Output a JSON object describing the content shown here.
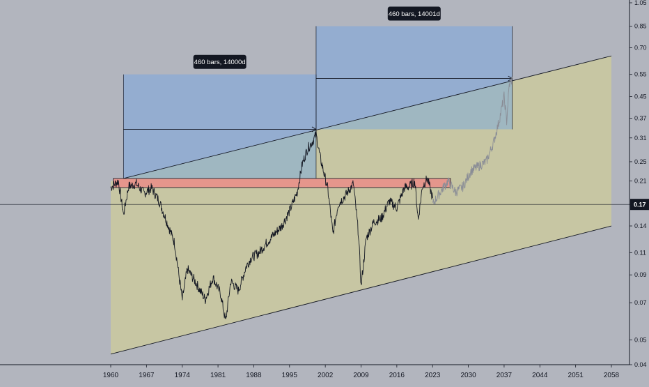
{
  "chart_data": {
    "type": "line",
    "title": "",
    "xlabel": "",
    "ylabel": "",
    "x_ticks": [
      "1960",
      "1967",
      "1974",
      "1981",
      "1988",
      "1995",
      "2002",
      "2009",
      "2016",
      "2023",
      "2030",
      "2037",
      "2044",
      "2051",
      "2058"
    ],
    "y_ticks": [
      "1.05",
      "0.85",
      "0.70",
      "0.55",
      "0.45",
      "0.37",
      "0.31",
      "0.25",
      "0.21",
      "0.17",
      "0.14",
      "0.11",
      "0.09",
      "0.07",
      "0.05",
      "0.04"
    ],
    "y_scale": "log",
    "xlim": [
      1960,
      2058
    ],
    "ylim": [
      0.04,
      1.05
    ],
    "current_value": "0.17",
    "grid": false,
    "series": [
      {
        "role": "price",
        "color": "#131722",
        "x": [
          1960.0,
          1961.5,
          1962.5,
          1963.5,
          1965.0,
          1966.5,
          1968.0,
          1969.5,
          1971.0,
          1972.5,
          1974.0,
          1975.0,
          1976.5,
          1978.5,
          1980.0,
          1981.5,
          1982.5,
          1983.5,
          1985.0,
          1986.5,
          1987.5,
          1989.0,
          1990.5,
          1992.0,
          1993.5,
          1995.0,
          1996.5,
          1997.5,
          1998.5,
          1999.5,
          2000.2,
          2001.0,
          2002.5,
          2003.5,
          2004.5,
          2006.0,
          2007.5,
          2008.5,
          2009.0,
          2010.0,
          2011.5,
          2013.0,
          2014.5,
          2016.0,
          2017.5,
          2018.5,
          2019.5,
          2020.2,
          2021.0,
          2022.0,
          2023.0
        ],
        "y": [
          0.198,
          0.21,
          0.155,
          0.2,
          0.205,
          0.188,
          0.197,
          0.175,
          0.145,
          0.12,
          0.072,
          0.095,
          0.085,
          0.072,
          0.088,
          0.076,
          0.059,
          0.085,
          0.078,
          0.097,
          0.105,
          0.11,
          0.12,
          0.13,
          0.14,
          0.16,
          0.19,
          0.245,
          0.28,
          0.3,
          0.32,
          0.26,
          0.195,
          0.13,
          0.17,
          0.185,
          0.205,
          0.13,
          0.081,
          0.125,
          0.145,
          0.15,
          0.175,
          0.165,
          0.198,
          0.2,
          0.21,
          0.148,
          0.2,
          0.215,
          0.18
        ]
      },
      {
        "role": "projection",
        "color": "#8a8d96",
        "x": [
          2023.0,
          2024.5,
          2026.0,
          2027.5,
          2029.0,
          2030.5,
          2032.0,
          2033.5,
          2035.0,
          2036.0,
          2037.0,
          2037.5,
          2038.0,
          2038.6
        ],
        "y": [
          0.17,
          0.19,
          0.21,
          0.19,
          0.2,
          0.23,
          0.24,
          0.25,
          0.3,
          0.36,
          0.45,
          0.36,
          0.5,
          0.53
        ]
      }
    ],
    "channel": {
      "upper": [
        [
          1962.5,
          0.215
        ],
        [
          2058.0,
          0.65
        ]
      ],
      "lower": [
        [
          1960.0,
          0.044
        ],
        [
          2058.0,
          0.14
        ]
      ]
    },
    "resistance_zone": {
      "x": [
        1960.5,
        2026.5
      ],
      "y": [
        0.198,
        0.215
      ]
    },
    "measurements": [
      {
        "label": "460 bars, 14000d",
        "x": [
          1962.5,
          2000.2
        ],
        "y": [
          0.215,
          0.55
        ],
        "mid_y": 0.335
      },
      {
        "label": "460 bars, 14001d",
        "x": [
          2000.2,
          2038.6
        ],
        "y": [
          0.335,
          0.85
        ],
        "mid_y": 0.53
      }
    ]
  }
}
